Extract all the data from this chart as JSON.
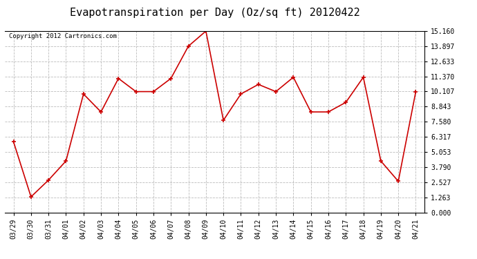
{
  "title": "Evapotranspiration per Day (Oz/sq ft) 20120422",
  "copyright_text": "Copyright 2012 Cartronics.com",
  "x_labels": [
    "03/29",
    "03/30",
    "03/31",
    "04/01",
    "04/02",
    "04/03",
    "04/04",
    "04/05",
    "04/06",
    "04/07",
    "04/08",
    "04/09",
    "04/10",
    "04/11",
    "04/12",
    "04/13",
    "04/14",
    "04/15",
    "04/16",
    "04/17",
    "04/18",
    "04/19",
    "04/20",
    "04/21"
  ],
  "y_values": [
    5.9,
    1.3,
    2.7,
    4.3,
    9.9,
    8.4,
    11.2,
    10.1,
    10.1,
    11.2,
    13.9,
    15.16,
    7.7,
    9.9,
    10.7,
    10.1,
    11.3,
    8.4,
    8.4,
    9.2,
    11.3,
    4.3,
    2.6,
    10.1
  ],
  "line_color": "#cc0000",
  "marker": "+",
  "marker_size": 5,
  "marker_linewidth": 1.2,
  "linewidth": 1.2,
  "y_ticks": [
    0.0,
    1.263,
    2.527,
    3.79,
    5.053,
    6.317,
    7.58,
    8.843,
    10.107,
    11.37,
    12.633,
    13.897,
    15.16
  ],
  "ylim": [
    0.0,
    15.16
  ],
  "background_color": "#ffffff",
  "grid_color": "#bbbbbb",
  "title_fontsize": 11,
  "tick_fontsize": 7,
  "copyright_fontsize": 6.5
}
